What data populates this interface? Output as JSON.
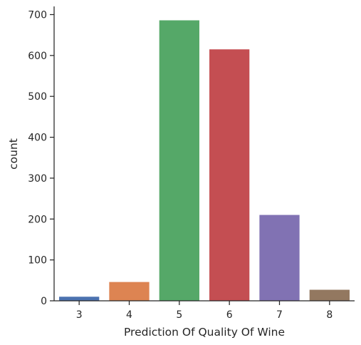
{
  "chart_data": {
    "type": "bar",
    "title": "",
    "xlabel": "Prediction Of Quality Of Wine",
    "ylabel": "count",
    "categories": [
      "3",
      "4",
      "5",
      "6",
      "7",
      "8"
    ],
    "values": [
      10,
      46,
      686,
      615,
      210,
      27
    ],
    "colors": [
      "#4c72b0",
      "#dd8452",
      "#55a868",
      "#c44e52",
      "#8172b3",
      "#937860"
    ],
    "ylim": [
      0,
      720
    ],
    "yticks": [
      "0",
      "100",
      "200",
      "300",
      "400",
      "500",
      "600",
      "700"
    ],
    "grid": false,
    "legend": "none"
  }
}
